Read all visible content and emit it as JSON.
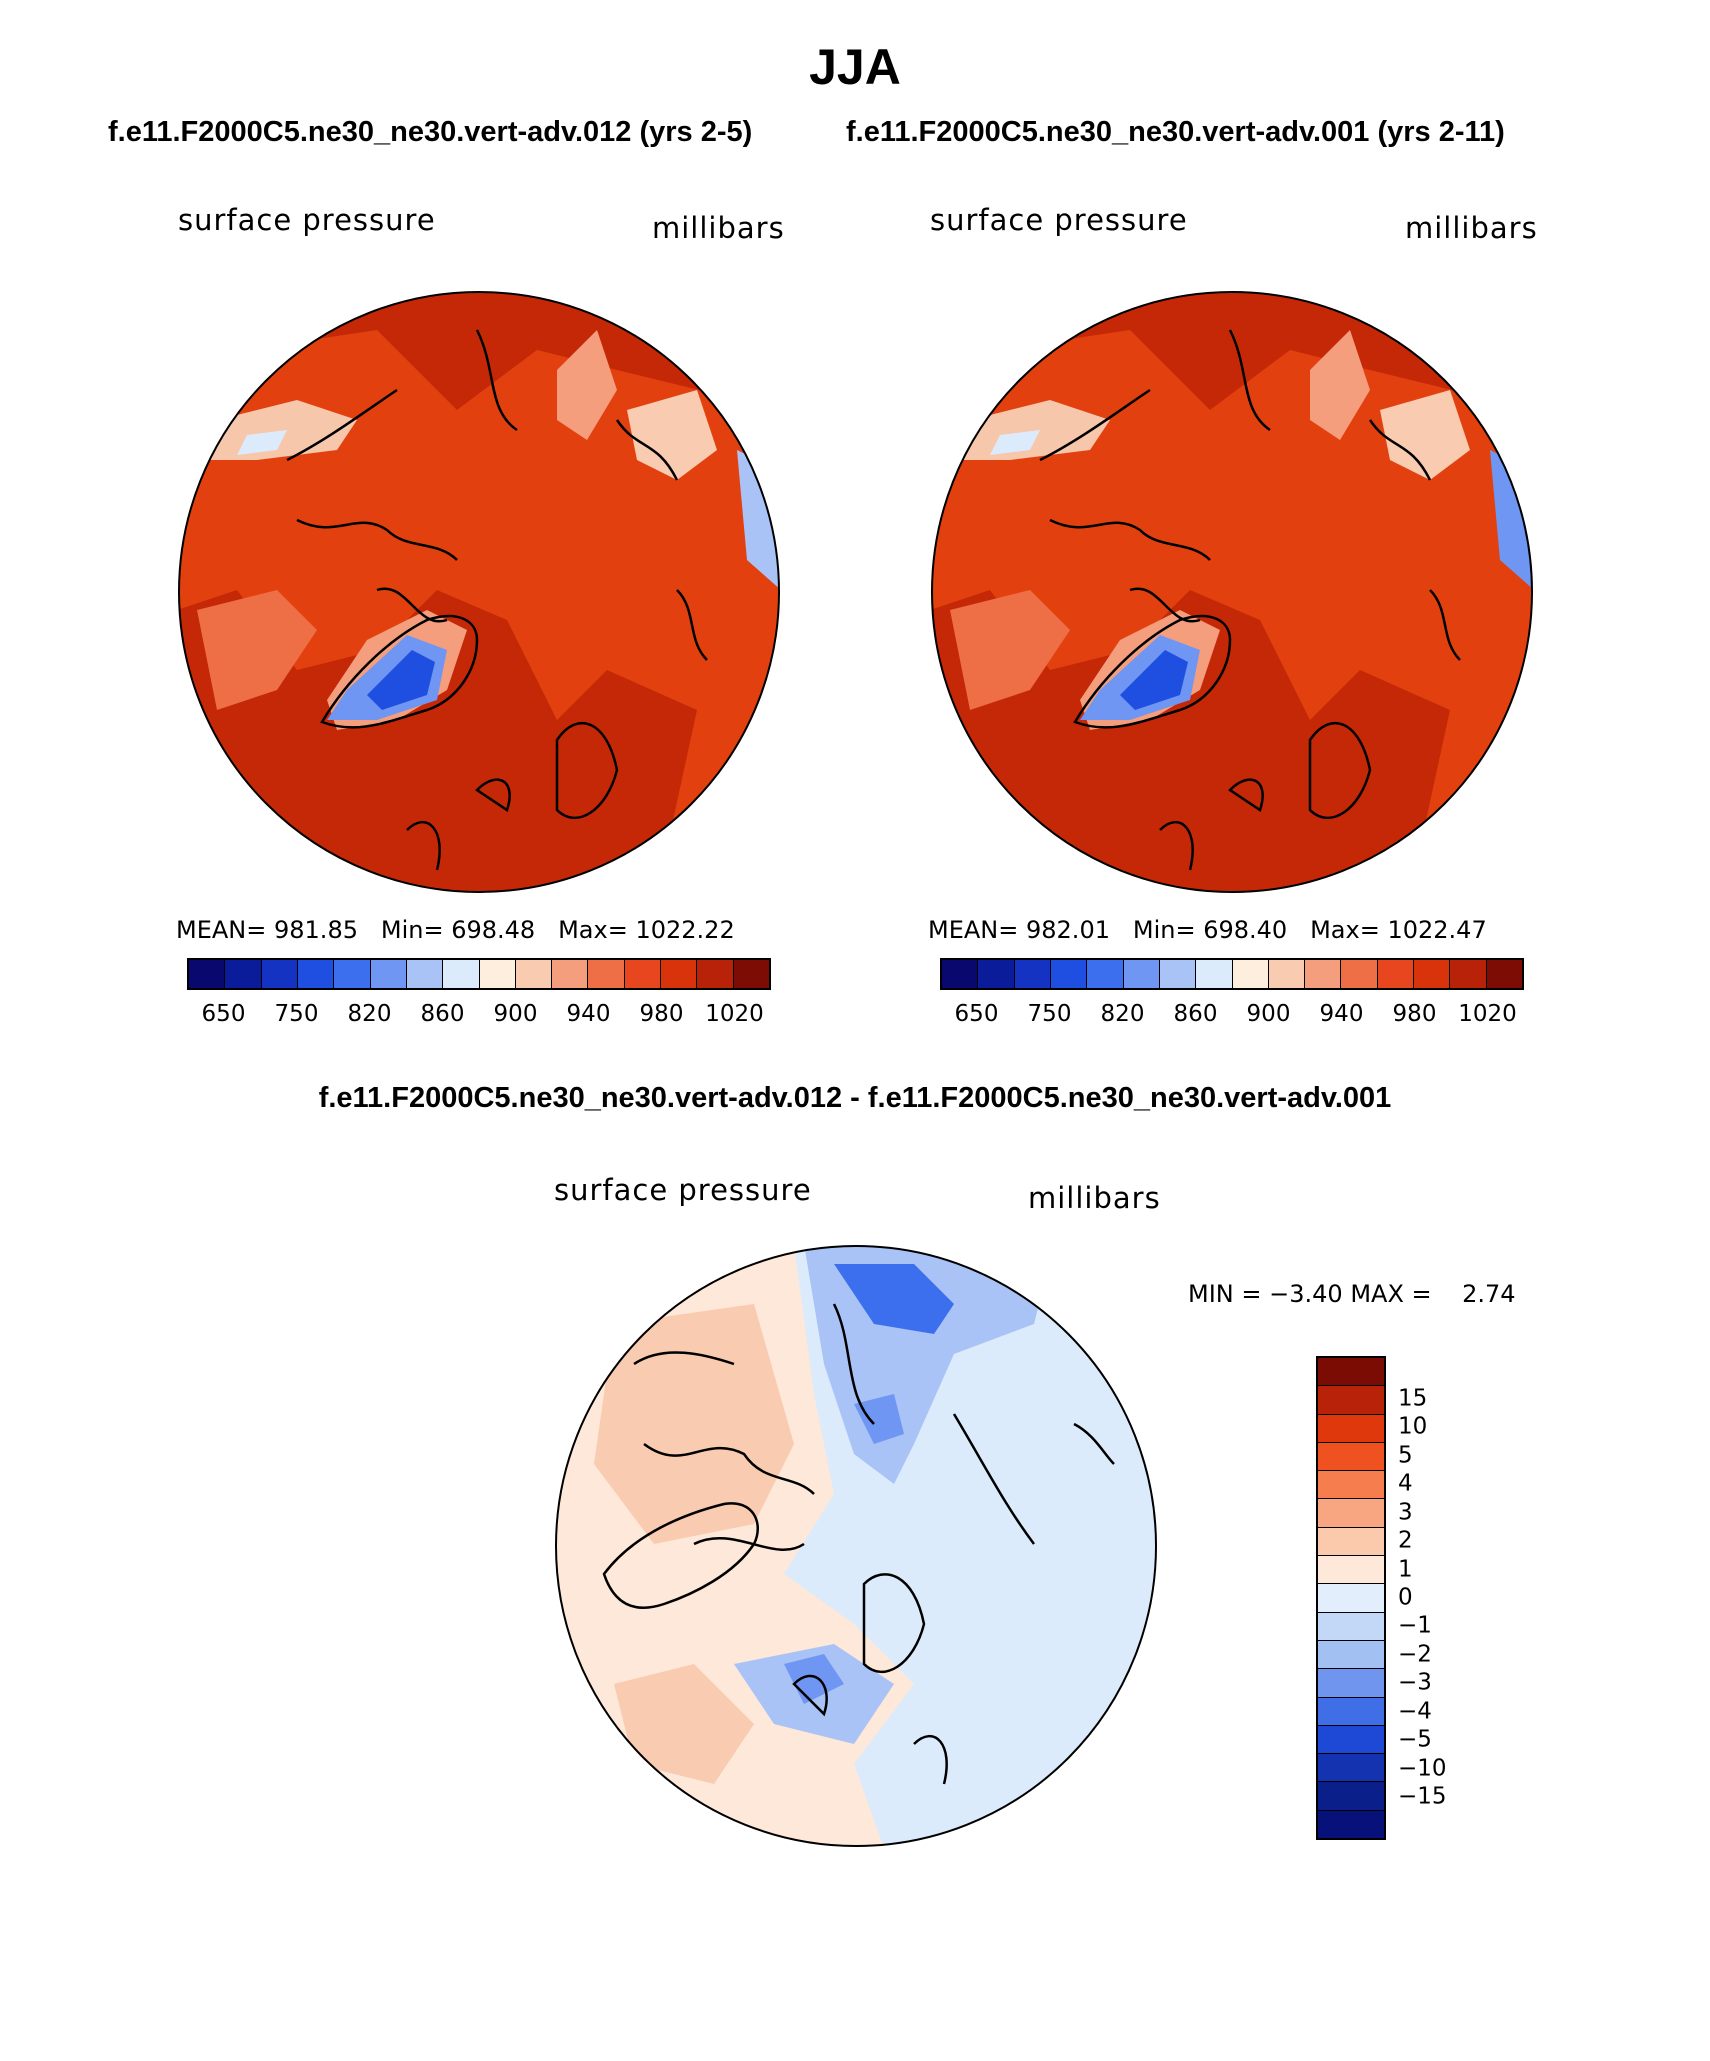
{
  "title": "JJA",
  "panels": [
    {
      "run": "f.e11.F2000C5.ne30_ne30.vert-adv.012 (yrs 2-5)",
      "variable": "surface pressure",
      "units": "millibars",
      "stats": {
        "mean_label": "MEAN=",
        "mean": "981.85",
        "min_label": "Min=",
        "min": "698.48",
        "max_label": "Max=",
        "max": "1022.22"
      }
    },
    {
      "run": "f.e11.F2000C5.ne30_ne30.vert-adv.001 (yrs 2-11)",
      "variable": "surface pressure",
      "units": "millibars",
      "stats": {
        "mean_label": "MEAN=",
        "mean": "982.01",
        "min_label": "Min=",
        "min": "698.40",
        "max_label": "Max=",
        "max": "1022.47"
      }
    }
  ],
  "abs_colorbar": {
    "colors": [
      "#08086e",
      "#0a1c9a",
      "#1433c2",
      "#1f4fe0",
      "#3c6fee",
      "#6e96f2",
      "#a9c3f6",
      "#dcebfb",
      "#fdeede",
      "#f9cbb0",
      "#f49e7d",
      "#ee6e46",
      "#e8461e",
      "#d9330b",
      "#b82208",
      "#7c0c04"
    ],
    "ticks": [
      "650",
      "750",
      "820",
      "860",
      "900",
      "940",
      "980",
      "1020"
    ]
  },
  "difference": {
    "title": "f.e11.F2000C5.ne30_ne30.vert-adv.012 - f.e11.F2000C5.ne30_ne30.vert-adv.001",
    "variable": "surface pressure",
    "units": "millibars",
    "min_label": "MIN =",
    "min": "−3.40",
    "max_label": "MAX =",
    "max": "2.74"
  },
  "diff_colorbar": {
    "colors": [
      "#7a0c04",
      "#b82208",
      "#de380c",
      "#ef5220",
      "#f57d4e",
      "#f8a582",
      "#fbc9ab",
      "#fde8d9",
      "#e2eefb",
      "#c3d7f7",
      "#a3c0f3",
      "#6f95ee",
      "#3f6ee6",
      "#1d49d6",
      "#1433b0",
      "#0b1f8a",
      "#06127a"
    ],
    "ticks": [
      "15",
      "10",
      "5",
      "4",
      "3",
      "2",
      "1",
      "0",
      "−1",
      "−2",
      "−3",
      "−4",
      "−5",
      "−10",
      "−15"
    ]
  },
  "colors": {
    "ocean_high": "#c02404",
    "land_high": "#e03a0c",
    "greenland": "#1f4fe0",
    "coast": "#000000"
  }
}
